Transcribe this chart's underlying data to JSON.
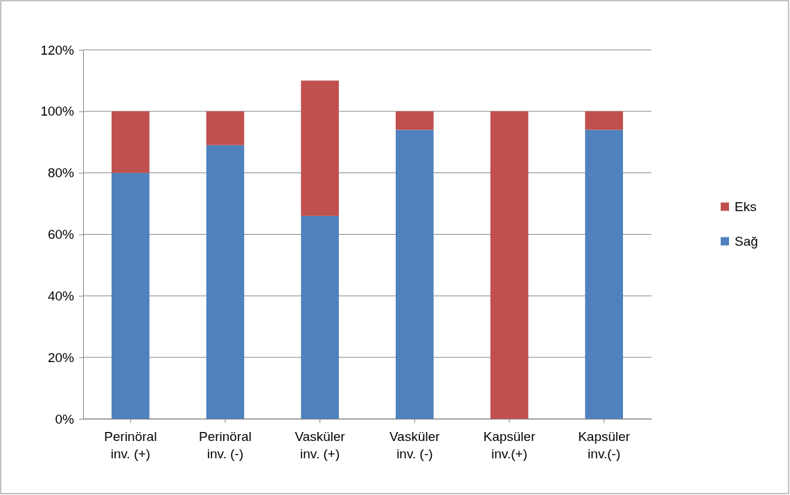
{
  "chart_data": {
    "type": "bar",
    "stacked": true,
    "categories": [
      "Perinöral inv. (+)",
      "Perinöral inv. (-)",
      "Vasküler inv. (+)",
      "Vasküler inv. (-)",
      "Kapsüler inv.(+)",
      "Kapsüler inv.(-)"
    ],
    "series": [
      {
        "name": "Sağ",
        "color": "#4f81bd",
        "values": [
          80,
          89,
          66,
          94,
          0,
          94
        ]
      },
      {
        "name": "Eks",
        "color": "#c0504d",
        "values": [
          20,
          11,
          44,
          6,
          100,
          6
        ]
      }
    ],
    "ylim": [
      0,
      120
    ],
    "yticks": [
      {
        "value": 0,
        "label": "0%"
      },
      {
        "value": 20,
        "label": "20%"
      },
      {
        "value": 40,
        "label": "40%"
      },
      {
        "value": 60,
        "label": "60%"
      },
      {
        "value": 80,
        "label": "80%"
      },
      {
        "value": 100,
        "label": "100%"
      },
      {
        "value": 120,
        "label": "120%"
      }
    ],
    "grid": "y",
    "legend": "right"
  }
}
